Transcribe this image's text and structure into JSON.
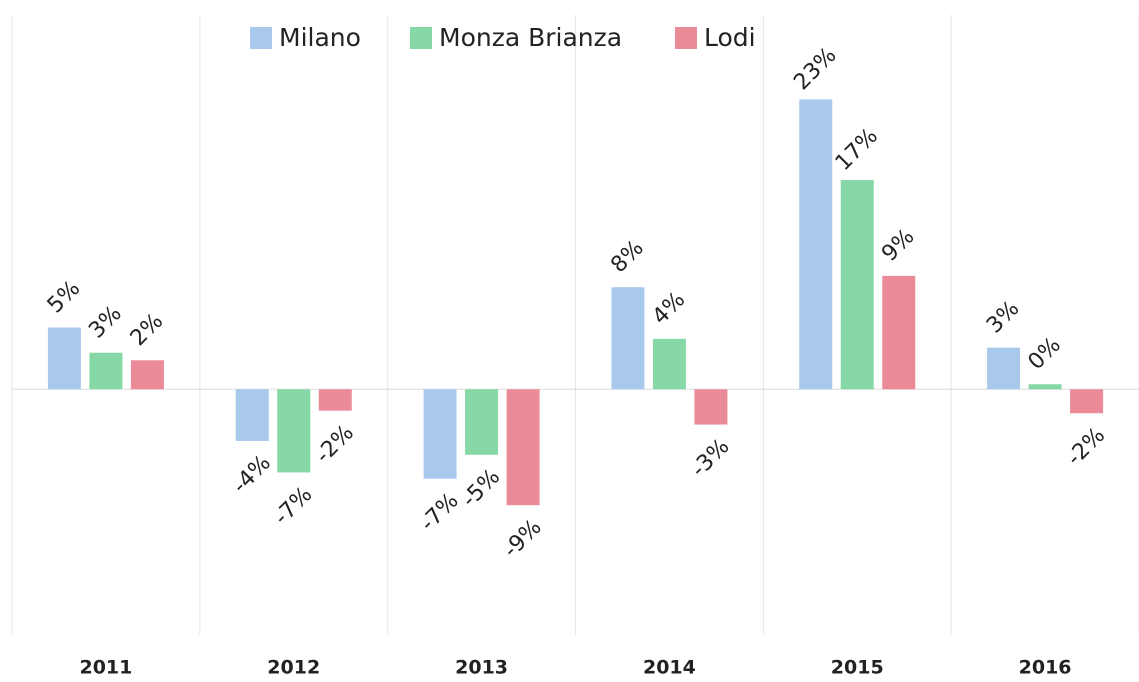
{
  "chart_data": {
    "type": "bar",
    "categories": [
      "2011",
      "2012",
      "2013",
      "2014",
      "2015",
      "2016"
    ],
    "series": [
      {
        "name": "Milano",
        "color": "#a9c9ec",
        "values": [
          4.9,
          -4.1,
          -7.1,
          8.1,
          23,
          3.3
        ],
        "value_labels": [
          "5%",
          "-4%",
          "-7%",
          "8%",
          "23%",
          "3%"
        ]
      },
      {
        "name": "Monza Brianza",
        "color": "#86d9a6",
        "values": [
          2.9,
          -6.6,
          -5.2,
          4.0,
          16.6,
          0.4
        ],
        "value_labels": [
          "3%",
          "-7%",
          "-5%",
          "4%",
          "17%",
          "0%"
        ]
      },
      {
        "name": "Lodi",
        "color": "#eb8a99",
        "values": [
          2.3,
          -1.7,
          -9.2,
          -2.8,
          9.0,
          -1.9
        ],
        "value_labels": [
          "2%",
          "-2%",
          "-9%",
          "-3%",
          "9%",
          "-2%"
        ]
      }
    ],
    "ylim": [
      -19.5,
      29.7
    ]
  }
}
